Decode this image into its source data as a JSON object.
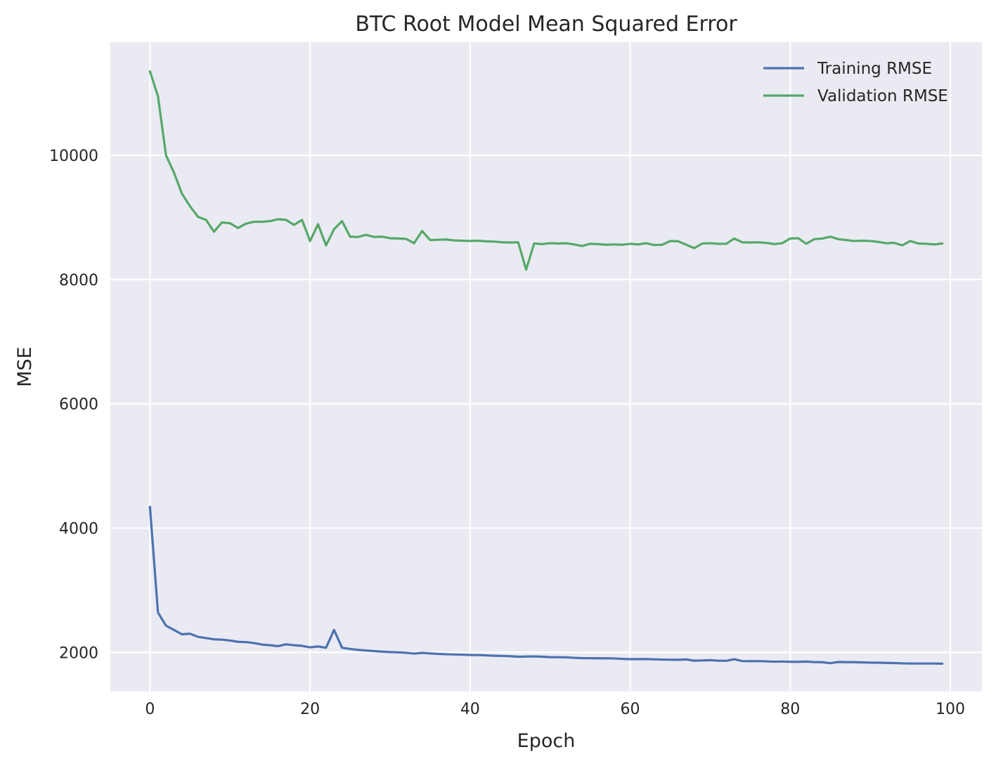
{
  "chart_data": {
    "type": "line",
    "title": "BTC Root Model Mean Squared Error",
    "xlabel": "Epoch",
    "ylabel": "MSE",
    "xlim": [
      -4.95,
      103.95
    ],
    "ylim": [
      1370,
      11820
    ],
    "xticks": [
      0,
      20,
      40,
      60,
      80,
      100
    ],
    "yticks": [
      2000,
      4000,
      6000,
      8000,
      10000
    ],
    "grid": true,
    "background": "#eaeaf2",
    "legend_position": "upper-right",
    "series": [
      {
        "name": "Training RMSE",
        "color": "#4c72b0",
        "x": [
          0,
          1,
          2,
          3,
          4,
          5,
          6,
          7,
          8,
          9,
          10,
          11,
          12,
          13,
          14,
          15,
          16,
          17,
          18,
          19,
          20,
          21,
          22,
          23,
          24,
          25,
          26,
          27,
          28,
          29,
          30,
          31,
          32,
          33,
          34,
          35,
          36,
          37,
          38,
          39,
          40,
          41,
          42,
          43,
          44,
          45,
          46,
          47,
          48,
          49,
          50,
          51,
          52,
          53,
          54,
          55,
          56,
          57,
          58,
          59,
          60,
          61,
          62,
          63,
          64,
          65,
          66,
          67,
          68,
          69,
          70,
          71,
          72,
          73,
          74,
          75,
          76,
          77,
          78,
          79,
          80,
          81,
          82,
          83,
          84,
          85,
          86,
          87,
          88,
          89,
          90,
          91,
          92,
          93,
          94,
          95,
          96,
          97,
          98,
          99
        ],
        "values": [
          4340,
          2640,
          2430,
          2360,
          2290,
          2300,
          2250,
          2230,
          2210,
          2205,
          2190,
          2170,
          2165,
          2150,
          2125,
          2115,
          2100,
          2130,
          2115,
          2105,
          2080,
          2095,
          2075,
          2360,
          2075,
          2055,
          2040,
          2030,
          2020,
          2012,
          2005,
          2000,
          1993,
          1980,
          1992,
          1983,
          1975,
          1970,
          1966,
          1963,
          1958,
          1957,
          1952,
          1945,
          1943,
          1938,
          1930,
          1933,
          1935,
          1930,
          1923,
          1922,
          1920,
          1912,
          1907,
          1906,
          1904,
          1904,
          1902,
          1895,
          1890,
          1892,
          1892,
          1888,
          1884,
          1882,
          1880,
          1886,
          1866,
          1870,
          1875,
          1866,
          1864,
          1890,
          1860,
          1858,
          1860,
          1855,
          1850,
          1853,
          1848,
          1848,
          1852,
          1843,
          1842,
          1826,
          1845,
          1842,
          1842,
          1838,
          1835,
          1834,
          1831,
          1828,
          1823,
          1820,
          1820,
          1820,
          1820,
          1818
        ]
      },
      {
        "name": "Validation RMSE",
        "color": "#55a868",
        "x": [
          0,
          1,
          2,
          3,
          4,
          5,
          6,
          7,
          8,
          9,
          10,
          11,
          12,
          13,
          14,
          15,
          16,
          17,
          18,
          19,
          20,
          21,
          22,
          23,
          24,
          25,
          26,
          27,
          28,
          29,
          30,
          31,
          32,
          33,
          34,
          35,
          36,
          37,
          38,
          39,
          40,
          41,
          42,
          43,
          44,
          45,
          46,
          47,
          48,
          49,
          50,
          51,
          52,
          53,
          54,
          55,
          56,
          57,
          58,
          59,
          60,
          61,
          62,
          63,
          64,
          65,
          66,
          67,
          68,
          69,
          70,
          71,
          72,
          73,
          74,
          75,
          76,
          77,
          78,
          79,
          80,
          81,
          82,
          83,
          84,
          85,
          86,
          87,
          88,
          89,
          90,
          91,
          92,
          93,
          94,
          95,
          96,
          97,
          98,
          99
        ],
        "values": [
          11350,
          10950,
          10000,
          9720,
          9380,
          9180,
          9010,
          8960,
          8770,
          8920,
          8905,
          8830,
          8900,
          8930,
          8930,
          8940,
          8970,
          8960,
          8880,
          8960,
          8620,
          8890,
          8550,
          8810,
          8940,
          8690,
          8685,
          8720,
          8685,
          8690,
          8665,
          8660,
          8655,
          8585,
          8780,
          8635,
          8640,
          8645,
          8630,
          8625,
          8620,
          8625,
          8615,
          8610,
          8600,
          8595,
          8600,
          8160,
          8580,
          8570,
          8585,
          8580,
          8585,
          8565,
          8540,
          8575,
          8570,
          8560,
          8565,
          8560,
          8575,
          8565,
          8585,
          8555,
          8560,
          8620,
          8615,
          8560,
          8505,
          8580,
          8585,
          8575,
          8575,
          8660,
          8600,
          8595,
          8600,
          8590,
          8570,
          8585,
          8660,
          8665,
          8575,
          8650,
          8660,
          8690,
          8650,
          8635,
          8620,
          8625,
          8620,
          8605,
          8585,
          8590,
          8550,
          8620,
          8580,
          8575,
          8565,
          8580
        ]
      }
    ]
  }
}
